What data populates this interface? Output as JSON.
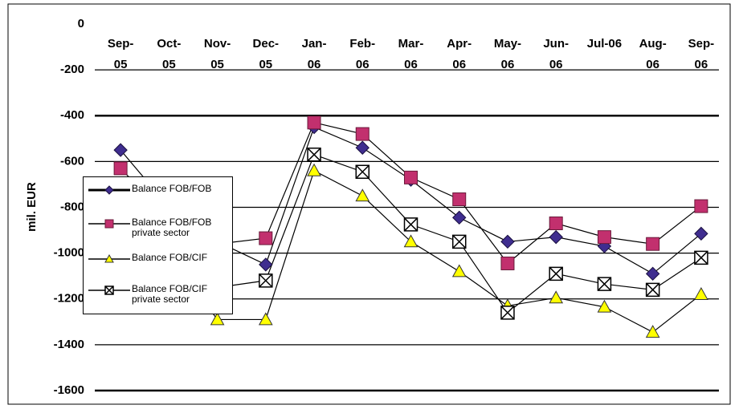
{
  "chart_data": {
    "type": "line",
    "y_label": "mil. EUR",
    "categories": [
      "Sep-05",
      "Oct-05",
      "Nov-05",
      "Dec-05",
      "Jan-06",
      "Feb-06",
      "Mar-06",
      "Apr-06",
      "May-06",
      "Jun-06",
      "Jul-06",
      "Aug-06",
      "Sep-06"
    ],
    "series": [
      {
        "name": "Balance FOB/FOB",
        "color": "#3f2d8f",
        "marker": "diamond",
        "values": [
          -550,
          -800,
          -950,
          -1050,
          -450,
          -540,
          -680,
          -845,
          -950,
          -930,
          -970,
          -1090,
          -915
        ]
      },
      {
        "name": "Balance FOB/FOB private sector",
        "color": "#c2306e",
        "marker": "square",
        "values": [
          -630,
          -850,
          -960,
          -935,
          -430,
          -480,
          -670,
          -765,
          -1045,
          -870,
          -930,
          -960,
          -795
        ]
      },
      {
        "name": "Balance FOB/CIF",
        "color": "#ffff00",
        "marker": "triangle",
        "values": [
          -700,
          -1000,
          -1290,
          -1290,
          -640,
          -750,
          -950,
          -1080,
          -1230,
          -1195,
          -1235,
          -1345,
          -1180
        ]
      },
      {
        "name": "Balance FOB/CIF private sector",
        "color": "#ffffff",
        "marker": "xsquare",
        "values": [
          -700,
          -1000,
          -1150,
          -1120,
          -570,
          -645,
          -875,
          -950,
          -1260,
          -1090,
          -1135,
          -1160,
          -1020
        ]
      }
    ],
    "ylim": [
      -1600,
      0
    ],
    "yticks": [
      0,
      -200,
      -400,
      -600,
      -800,
      -1000,
      -1200,
      -1400,
      -1600
    ],
    "grid": true
  }
}
